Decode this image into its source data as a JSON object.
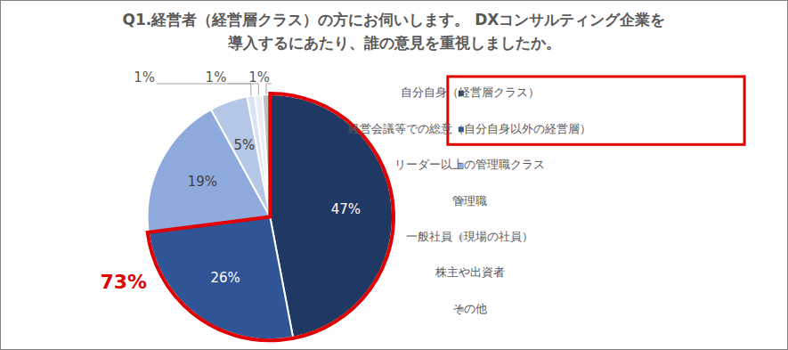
{
  "chart_data": {
    "type": "pie",
    "title": "Q1.経営者（経営層クラス）の方にお伺いします。 DXコンサルティング企業を\n導入するにあたり、誰の意見を重視しましたか。",
    "categories": [
      "自分自身（経営層クラス）",
      "経営会議等での総意（自分自身以外の経営層）",
      "リーダー以上の管理職クラス",
      "管理職",
      "一般社員（現場の社員）",
      "株主や出資者",
      "その他"
    ],
    "values": [
      47,
      26,
      19,
      5,
      1,
      1,
      1
    ],
    "value_labels": [
      "47%",
      "26%",
      "19%",
      "5%",
      "1%",
      "1%",
      "1%"
    ],
    "colors": [
      "#203864",
      "#2f5597",
      "#8faadc",
      "#b4c7e7",
      "#dae3f3",
      "#e8edf6",
      "#c0c0c0"
    ],
    "data_labels": true,
    "legend": "right",
    "annotation": "73%"
  }
}
